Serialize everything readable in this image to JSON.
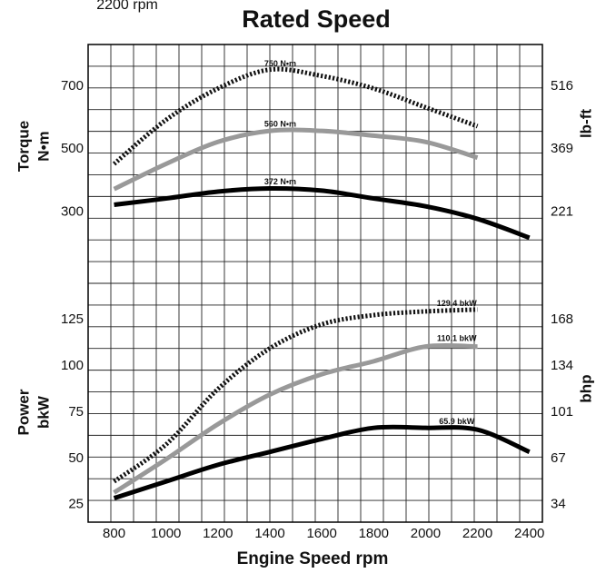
{
  "top_text": "2200 rpm",
  "chart_data": {
    "type": "line",
    "title": "Rated Speed",
    "xlabel": "Engine Speed rpm",
    "x_ticks": [
      800,
      1000,
      1200,
      1400,
      1600,
      1800,
      2000,
      2200,
      2400
    ],
    "xlim": [
      700,
      2450
    ],
    "grid": true,
    "panels": [
      {
        "name": "torque",
        "ylabel_left": "Torque N•m",
        "ylabel_left_lines": [
          "Torque",
          "N•m"
        ],
        "ylabel_right": "lb-ft",
        "ylim": [
          70,
          830
        ],
        "y_ticks": [
          300,
          500,
          700
        ],
        "right_ticks": [
          {
            "value": 300,
            "label": "221"
          },
          {
            "value": 500,
            "label": "369"
          },
          {
            "value": 700,
            "label": "516"
          }
        ],
        "series": [
          {
            "style": "dotted",
            "color": "#111111",
            "x": [
              800,
              1000,
              1200,
              1400,
              1600,
              1800,
              2000,
              2200
            ],
            "y": [
              450,
              590,
              690,
              750,
              730,
              690,
              630,
              570
            ]
          },
          {
            "style": "solid",
            "color": "#999999",
            "x": [
              800,
              1000,
              1200,
              1400,
              1600,
              1800,
              2000,
              2200
            ],
            "y": [
              370,
              450,
              520,
              555,
              555,
              540,
              520,
              470
            ]
          },
          {
            "style": "solid",
            "color": "#000000",
            "x": [
              800,
              1000,
              1200,
              1400,
              1600,
              1800,
              2000,
              2200,
              2400
            ],
            "y": [
              320,
              340,
              362,
              372,
              365,
              340,
              315,
              275,
              215
            ]
          }
        ],
        "annotations": [
          {
            "x": 1440,
            "y": 760,
            "text": "750 N•m"
          },
          {
            "x": 1440,
            "y": 568,
            "text": "560 N•m"
          },
          {
            "x": 1440,
            "y": 385,
            "text": "372 N•m"
          }
        ]
      },
      {
        "name": "power",
        "ylabel_left": "Power bkW",
        "ylabel_left_lines": [
          "Power",
          "bkW"
        ],
        "ylabel_right": "bhp",
        "ylim": [
          15,
          155
        ],
        "y_ticks": [
          25,
          50,
          75,
          100,
          125
        ],
        "right_ticks": [
          {
            "value": 25,
            "label": "34"
          },
          {
            "value": 50,
            "label": "67"
          },
          {
            "value": 75,
            "label": "101"
          },
          {
            "value": 100,
            "label": "134"
          },
          {
            "value": 125,
            "label": "168"
          }
        ],
        "series": [
          {
            "style": "dotted",
            "color": "#111111",
            "x": [
              800,
              1000,
              1200,
              1400,
              1600,
              1800,
              2000,
              2200
            ],
            "y": [
              37,
              57,
              87,
              109,
              122,
              127,
              129,
              130
            ]
          },
          {
            "style": "solid",
            "color": "#999999",
            "x": [
              800,
              1000,
              1200,
              1400,
              1600,
              1800,
              2000,
              2200
            ],
            "y": [
              31,
              49,
              68,
              84,
              95,
              102,
              110,
              110
            ]
          },
          {
            "style": "solid",
            "color": "#000000",
            "x": [
              800,
              1000,
              1200,
              1400,
              1600,
              1800,
              2000,
              2200,
              2400
            ],
            "y": [
              28,
              37,
              46,
              53,
              60,
              66,
              66,
              65,
              53
            ]
          }
        ],
        "annotations": [
          {
            "x": 2120,
            "y": 132,
            "text": "129.4 bkW"
          },
          {
            "x": 2120,
            "y": 113,
            "text": "110.1 bkW"
          },
          {
            "x": 2120,
            "y": 68,
            "text": "65.9 bkW"
          }
        ]
      }
    ]
  }
}
